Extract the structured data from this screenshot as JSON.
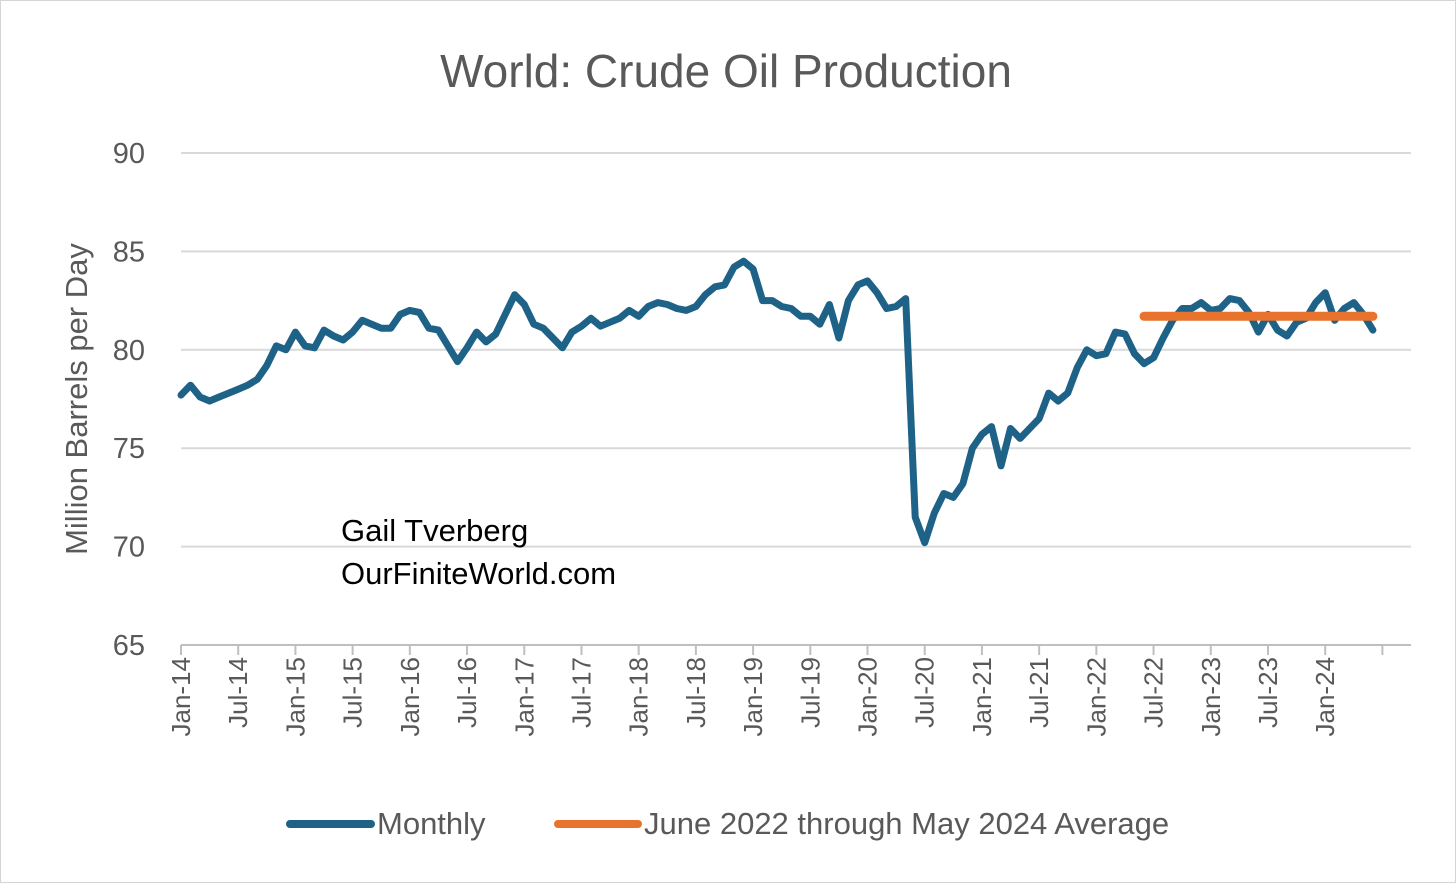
{
  "chart_data": {
    "type": "line",
    "title": "World: Crude Oil Production",
    "ylabel": "Million Barrels per Day",
    "xlabel": "",
    "ylim": [
      65,
      90
    ],
    "yticks": [
      "90",
      "85",
      "80",
      "75",
      "70",
      "65"
    ],
    "xlim": [
      "2014-01",
      "2024-10"
    ],
    "xtick_labels": [
      "Jan-14",
      "Jul-14",
      "Jan-15",
      "Jul-15",
      "Jan-16",
      "Jul-16",
      "Jan-17",
      "Jul-17",
      "Jan-18",
      "Jul-18",
      "Jan-19",
      "Jul-19",
      "Jan-20",
      "Jul-20",
      "Jan-21",
      "Jul-21",
      "Jan-22",
      "Jul-22",
      "Jan-23",
      "Jul-23",
      "Jan-24"
    ],
    "grid": true,
    "legend_position": "bottom",
    "annotation": [
      "Gail Tverberg",
      "OurFiniteWorld.com"
    ],
    "series": [
      {
        "name": "Monthly",
        "color": "#1f6287",
        "points": [
          [
            "2014-01",
            77.7
          ],
          [
            "2014-02",
            78.2
          ],
          [
            "2014-03",
            77.6
          ],
          [
            "2014-04",
            77.4
          ],
          [
            "2014-05",
            77.6
          ],
          [
            "2014-06",
            77.8
          ],
          [
            "2014-07",
            78.0
          ],
          [
            "2014-08",
            78.2
          ],
          [
            "2014-09",
            78.5
          ],
          [
            "2014-10",
            79.2
          ],
          [
            "2014-11",
            80.2
          ],
          [
            "2014-12",
            80.0
          ],
          [
            "2015-01",
            80.9
          ],
          [
            "2015-02",
            80.2
          ],
          [
            "2015-03",
            80.1
          ],
          [
            "2015-04",
            81.0
          ],
          [
            "2015-05",
            80.7
          ],
          [
            "2015-06",
            80.5
          ],
          [
            "2015-07",
            80.9
          ],
          [
            "2015-08",
            81.5
          ],
          [
            "2015-09",
            81.3
          ],
          [
            "2015-10",
            81.1
          ],
          [
            "2015-11",
            81.1
          ],
          [
            "2015-12",
            81.8
          ],
          [
            "2016-01",
            82.0
          ],
          [
            "2016-02",
            81.9
          ],
          [
            "2016-03",
            81.1
          ],
          [
            "2016-04",
            81.0
          ],
          [
            "2016-05",
            80.2
          ],
          [
            "2016-06",
            79.4
          ],
          [
            "2016-07",
            80.1
          ],
          [
            "2016-08",
            80.9
          ],
          [
            "2016-09",
            80.4
          ],
          [
            "2016-10",
            80.8
          ],
          [
            "2016-11",
            81.8
          ],
          [
            "2016-12",
            82.8
          ],
          [
            "2017-01",
            82.3
          ],
          [
            "2017-02",
            81.3
          ],
          [
            "2017-03",
            81.1
          ],
          [
            "2017-04",
            80.6
          ],
          [
            "2017-05",
            80.1
          ],
          [
            "2017-06",
            80.9
          ],
          [
            "2017-07",
            81.2
          ],
          [
            "2017-08",
            81.6
          ],
          [
            "2017-09",
            81.2
          ],
          [
            "2017-10",
            81.4
          ],
          [
            "2017-11",
            81.6
          ],
          [
            "2017-12",
            82.0
          ],
          [
            "2018-01",
            81.7
          ],
          [
            "2018-02",
            82.2
          ],
          [
            "2018-03",
            82.4
          ],
          [
            "2018-04",
            82.3
          ],
          [
            "2018-05",
            82.1
          ],
          [
            "2018-06",
            82.0
          ],
          [
            "2018-07",
            82.2
          ],
          [
            "2018-08",
            82.8
          ],
          [
            "2018-09",
            83.2
          ],
          [
            "2018-10",
            83.3
          ],
          [
            "2018-11",
            84.2
          ],
          [
            "2018-12",
            84.5
          ],
          [
            "2019-01",
            84.1
          ],
          [
            "2019-02",
            82.5
          ],
          [
            "2019-03",
            82.5
          ],
          [
            "2019-04",
            82.2
          ],
          [
            "2019-05",
            82.1
          ],
          [
            "2019-06",
            81.7
          ],
          [
            "2019-07",
            81.7
          ],
          [
            "2019-08",
            81.3
          ],
          [
            "2019-09",
            82.3
          ],
          [
            "2019-10",
            80.6
          ],
          [
            "2019-11",
            82.5
          ],
          [
            "2019-12",
            83.3
          ],
          [
            "2020-01",
            83.5
          ],
          [
            "2020-02",
            82.9
          ],
          [
            "2020-03",
            82.1
          ],
          [
            "2020-04",
            82.2
          ],
          [
            "2020-05",
            82.6
          ],
          [
            "2020-06",
            71.5
          ],
          [
            "2020-07",
            70.2
          ],
          [
            "2020-08",
            71.7
          ],
          [
            "2020-09",
            72.7
          ],
          [
            "2020-10",
            72.5
          ],
          [
            "2020-11",
            73.2
          ],
          [
            "2020-12",
            75.0
          ],
          [
            "2021-01",
            75.7
          ],
          [
            "2021-02",
            76.1
          ],
          [
            "2021-03",
            74.1
          ],
          [
            "2021-04",
            76.0
          ],
          [
            "2021-05",
            75.5
          ],
          [
            "2021-06",
            76.0
          ],
          [
            "2021-07",
            76.5
          ],
          [
            "2021-08",
            77.8
          ],
          [
            "2021-09",
            77.4
          ],
          [
            "2021-10",
            77.8
          ],
          [
            "2021-11",
            79.1
          ],
          [
            "2021-12",
            80.0
          ],
          [
            "2022-01",
            79.7
          ],
          [
            "2022-02",
            79.8
          ],
          [
            "2022-03",
            80.9
          ],
          [
            "2022-04",
            80.8
          ],
          [
            "2022-05",
            79.8
          ],
          [
            "2022-06",
            79.3
          ],
          [
            "2022-07",
            79.6
          ],
          [
            "2022-08",
            80.6
          ],
          [
            "2022-09",
            81.5
          ],
          [
            "2022-10",
            82.1
          ],
          [
            "2022-11",
            82.1
          ],
          [
            "2022-12",
            82.4
          ],
          [
            "2023-01",
            82.0
          ],
          [
            "2023-02",
            82.1
          ],
          [
            "2023-03",
            82.6
          ],
          [
            "2023-04",
            82.5
          ],
          [
            "2023-05",
            81.9
          ],
          [
            "2023-06",
            80.9
          ],
          [
            "2023-07",
            81.8
          ],
          [
            "2023-08",
            81.0
          ],
          [
            "2023-09",
            80.7
          ],
          [
            "2023-10",
            81.4
          ],
          [
            "2023-11",
            81.6
          ],
          [
            "2023-12",
            82.4
          ],
          [
            "2024-01",
            82.9
          ],
          [
            "2024-02",
            81.5
          ],
          [
            "2024-03",
            82.1
          ],
          [
            "2024-04",
            82.4
          ],
          [
            "2024-05",
            81.8
          ],
          [
            "2024-06",
            81.0
          ]
        ]
      },
      {
        "name": "June 2022 through May 2024 Average",
        "color": "#e8732c",
        "points": [
          [
            "2022-06",
            81.7
          ],
          [
            "2024-06",
            81.7
          ]
        ]
      }
    ]
  }
}
